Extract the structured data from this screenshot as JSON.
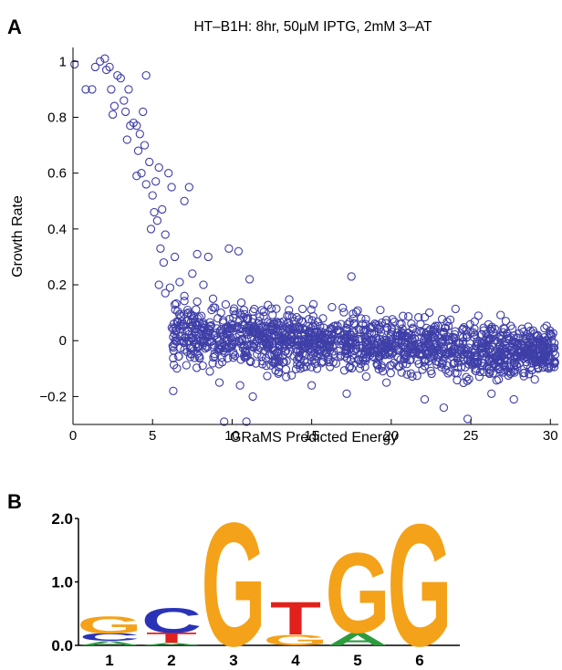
{
  "panel_a": {
    "label": "A",
    "chart_data": {
      "type": "scatter",
      "title": "HT–B1H: 8hr, 50μM IPTG, 2mM 3–AT",
      "xlabel": "GRaMS Predicted Energy",
      "ylabel": "Growth Rate",
      "xlim": [
        0,
        30.5
      ],
      "ylim": [
        -0.3,
        1.05
      ],
      "xticks": [
        0,
        5,
        10,
        15,
        20,
        25,
        30
      ],
      "yticks": [
        -0.2,
        0,
        0.2,
        0.4,
        0.6,
        0.8,
        1
      ],
      "ytick_labels": [
        "−0.2",
        "0",
        "0.2",
        "0.4",
        "0.6",
        "0.8",
        "1"
      ],
      "grid": false,
      "marker": "open circle",
      "color": "#3f3fa8",
      "points": [
        [
          0.1,
          0.99
        ],
        [
          0.8,
          0.9
        ],
        [
          1.2,
          0.9
        ],
        [
          1.4,
          0.98
        ],
        [
          1.7,
          1.0
        ],
        [
          2.0,
          1.01
        ],
        [
          2.1,
          0.97
        ],
        [
          2.3,
          0.98
        ],
        [
          2.4,
          0.9
        ],
        [
          2.6,
          0.84
        ],
        [
          2.5,
          0.81
        ],
        [
          2.8,
          0.95
        ],
        [
          3.0,
          0.94
        ],
        [
          3.2,
          0.86
        ],
        [
          3.3,
          0.82
        ],
        [
          3.5,
          0.9
        ],
        [
          3.6,
          0.77
        ],
        [
          3.8,
          0.78
        ],
        [
          3.4,
          0.72
        ],
        [
          4.0,
          0.77
        ],
        [
          4.2,
          0.74
        ],
        [
          4.1,
          0.68
        ],
        [
          4.4,
          0.82
        ],
        [
          4.6,
          0.95
        ],
        [
          4.5,
          0.7
        ],
        [
          4.3,
          0.6
        ],
        [
          4.0,
          0.59
        ],
        [
          4.8,
          0.64
        ],
        [
          4.6,
          0.56
        ],
        [
          5.0,
          0.52
        ],
        [
          5.2,
          0.57
        ],
        [
          5.4,
          0.62
        ],
        [
          5.1,
          0.46
        ],
        [
          4.9,
          0.4
        ],
        [
          5.3,
          0.43
        ],
        [
          5.6,
          0.47
        ],
        [
          5.8,
          0.38
        ],
        [
          6.0,
          0.6
        ],
        [
          6.2,
          0.55
        ],
        [
          5.5,
          0.33
        ],
        [
          5.7,
          0.28
        ],
        [
          6.4,
          0.3
        ],
        [
          7.3,
          0.55
        ],
        [
          7.0,
          0.5
        ],
        [
          7.8,
          0.31
        ],
        [
          8.5,
          0.3
        ],
        [
          9.8,
          0.33
        ],
        [
          10.4,
          0.32
        ],
        [
          5.4,
          0.2
        ],
        [
          5.8,
          0.17
        ],
        [
          6.1,
          0.19
        ],
        [
          6.4,
          0.13
        ],
        [
          6.7,
          0.21
        ],
        [
          7.0,
          0.16
        ],
        [
          7.2,
          0.11
        ],
        [
          7.5,
          0.24
        ],
        [
          7.8,
          0.14
        ],
        [
          8.2,
          0.2
        ],
        [
          8.8,
          0.15
        ],
        [
          9.3,
          0.1
        ],
        [
          9.6,
          0.13
        ],
        [
          11.1,
          0.22
        ],
        [
          17.5,
          0.23
        ],
        [
          6.3,
          -0.18
        ],
        [
          8.6,
          -0.11
        ],
        [
          9.2,
          -0.15
        ],
        [
          10.5,
          -0.16
        ],
        [
          11.3,
          -0.2
        ],
        [
          13.4,
          -0.13
        ],
        [
          15.0,
          -0.16
        ],
        [
          17.2,
          -0.19
        ],
        [
          19.7,
          -0.15
        ],
        [
          22.1,
          -0.21
        ],
        [
          23.3,
          -0.24
        ],
        [
          24.8,
          -0.28
        ],
        [
          26.3,
          -0.19
        ],
        [
          27.7,
          -0.21
        ],
        [
          9.5,
          -0.29
        ],
        [
          10.9,
          -0.29
        ],
        [
          29.9,
          -0.1
        ],
        [
          30.3,
          -0.05
        ],
        [
          29.2,
          0.02
        ],
        [
          28.6,
          0.05
        ],
        [
          27.2,
          0.07
        ]
      ],
      "cloud": {
        "x_start": 6.2,
        "x_end": 30.3,
        "y_start": 0.02,
        "y_end": -0.04,
        "spread": 0.05
      }
    }
  },
  "panel_b": {
    "label": "B",
    "chart_data": {
      "type": "sequence-logo",
      "ylabel_ticks": [
        "0.0",
        "1.0",
        "2.0"
      ],
      "ylim": [
        0,
        2
      ],
      "positions": [
        "1",
        "2",
        "3",
        "4",
        "5",
        "6"
      ],
      "stacks": [
        [
          {
            "base": "A",
            "bits": 0.07
          },
          {
            "base": "C",
            "bits": 0.12
          },
          {
            "base": "G",
            "bits": 0.28
          }
        ],
        [
          {
            "base": "A",
            "bits": 0.04
          },
          {
            "base": "T",
            "bits": 0.16
          },
          {
            "base": "C",
            "bits": 0.4
          }
        ],
        [
          {
            "base": "G",
            "bits": 2.0
          }
        ],
        [
          {
            "base": "G",
            "bits": 0.17
          },
          {
            "base": "T",
            "bits": 0.53
          }
        ],
        [
          {
            "base": "A",
            "bits": 0.2
          },
          {
            "base": "G",
            "bits": 1.3
          }
        ],
        [
          {
            "base": "G",
            "bits": 1.98
          }
        ]
      ],
      "colors": {
        "A": "#2e9b3f",
        "C": "#2a33b8",
        "G": "#f4a21a",
        "T": "#e2201c"
      }
    }
  }
}
